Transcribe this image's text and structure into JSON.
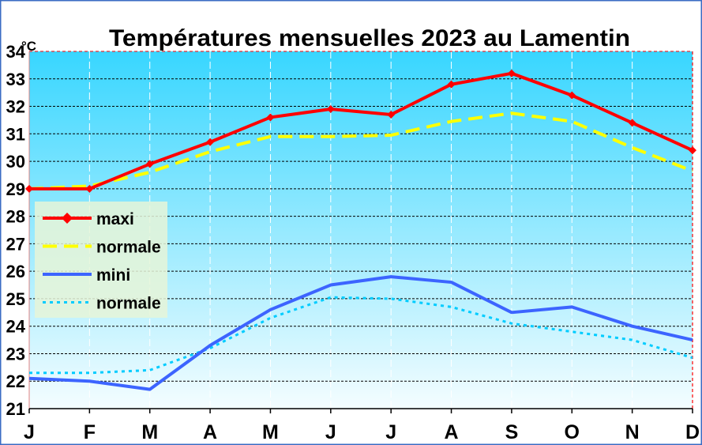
{
  "chart_data": {
    "type": "line",
    "title": "Températures mensuelles 2023 au Lamentin",
    "ylabel": "°C",
    "xlabel": "",
    "categories": [
      "J",
      "F",
      "M",
      "A",
      "M",
      "J",
      "J",
      "A",
      "S",
      "O",
      "N",
      "D"
    ],
    "ylim": [
      21,
      34
    ],
    "yticks": [
      "21",
      "22",
      "23",
      "24",
      "25",
      "26",
      "27",
      "28",
      "29",
      "30",
      "31",
      "32",
      "33",
      "34"
    ],
    "grid": true,
    "legend_position": "left",
    "series": [
      {
        "name": "maxi",
        "color": "#ff0000",
        "style": "solid-markers",
        "values": [
          29.0,
          29.0,
          29.9,
          30.7,
          31.6,
          31.9,
          31.7,
          32.8,
          33.2,
          32.4,
          31.4,
          30.4
        ]
      },
      {
        "name": "normale",
        "color": "#ffff00",
        "style": "dashed",
        "values": [
          29.0,
          29.1,
          29.6,
          30.35,
          30.9,
          30.9,
          30.95,
          31.45,
          31.75,
          31.45,
          30.5,
          29.65
        ]
      },
      {
        "name": "mini",
        "color": "#3c64ff",
        "style": "solid",
        "values": [
          22.1,
          22.0,
          21.7,
          23.3,
          24.6,
          25.5,
          25.8,
          25.6,
          24.5,
          24.7,
          24.0,
          23.5
        ]
      },
      {
        "name": "normale",
        "color": "#00ccff",
        "style": "dotted",
        "values": [
          22.3,
          22.3,
          22.4,
          23.2,
          24.3,
          25.05,
          25.0,
          24.7,
          24.1,
          23.8,
          23.5,
          22.85
        ]
      }
    ],
    "background_gradient": [
      "#38d6ff",
      "#f4fdff"
    ]
  }
}
